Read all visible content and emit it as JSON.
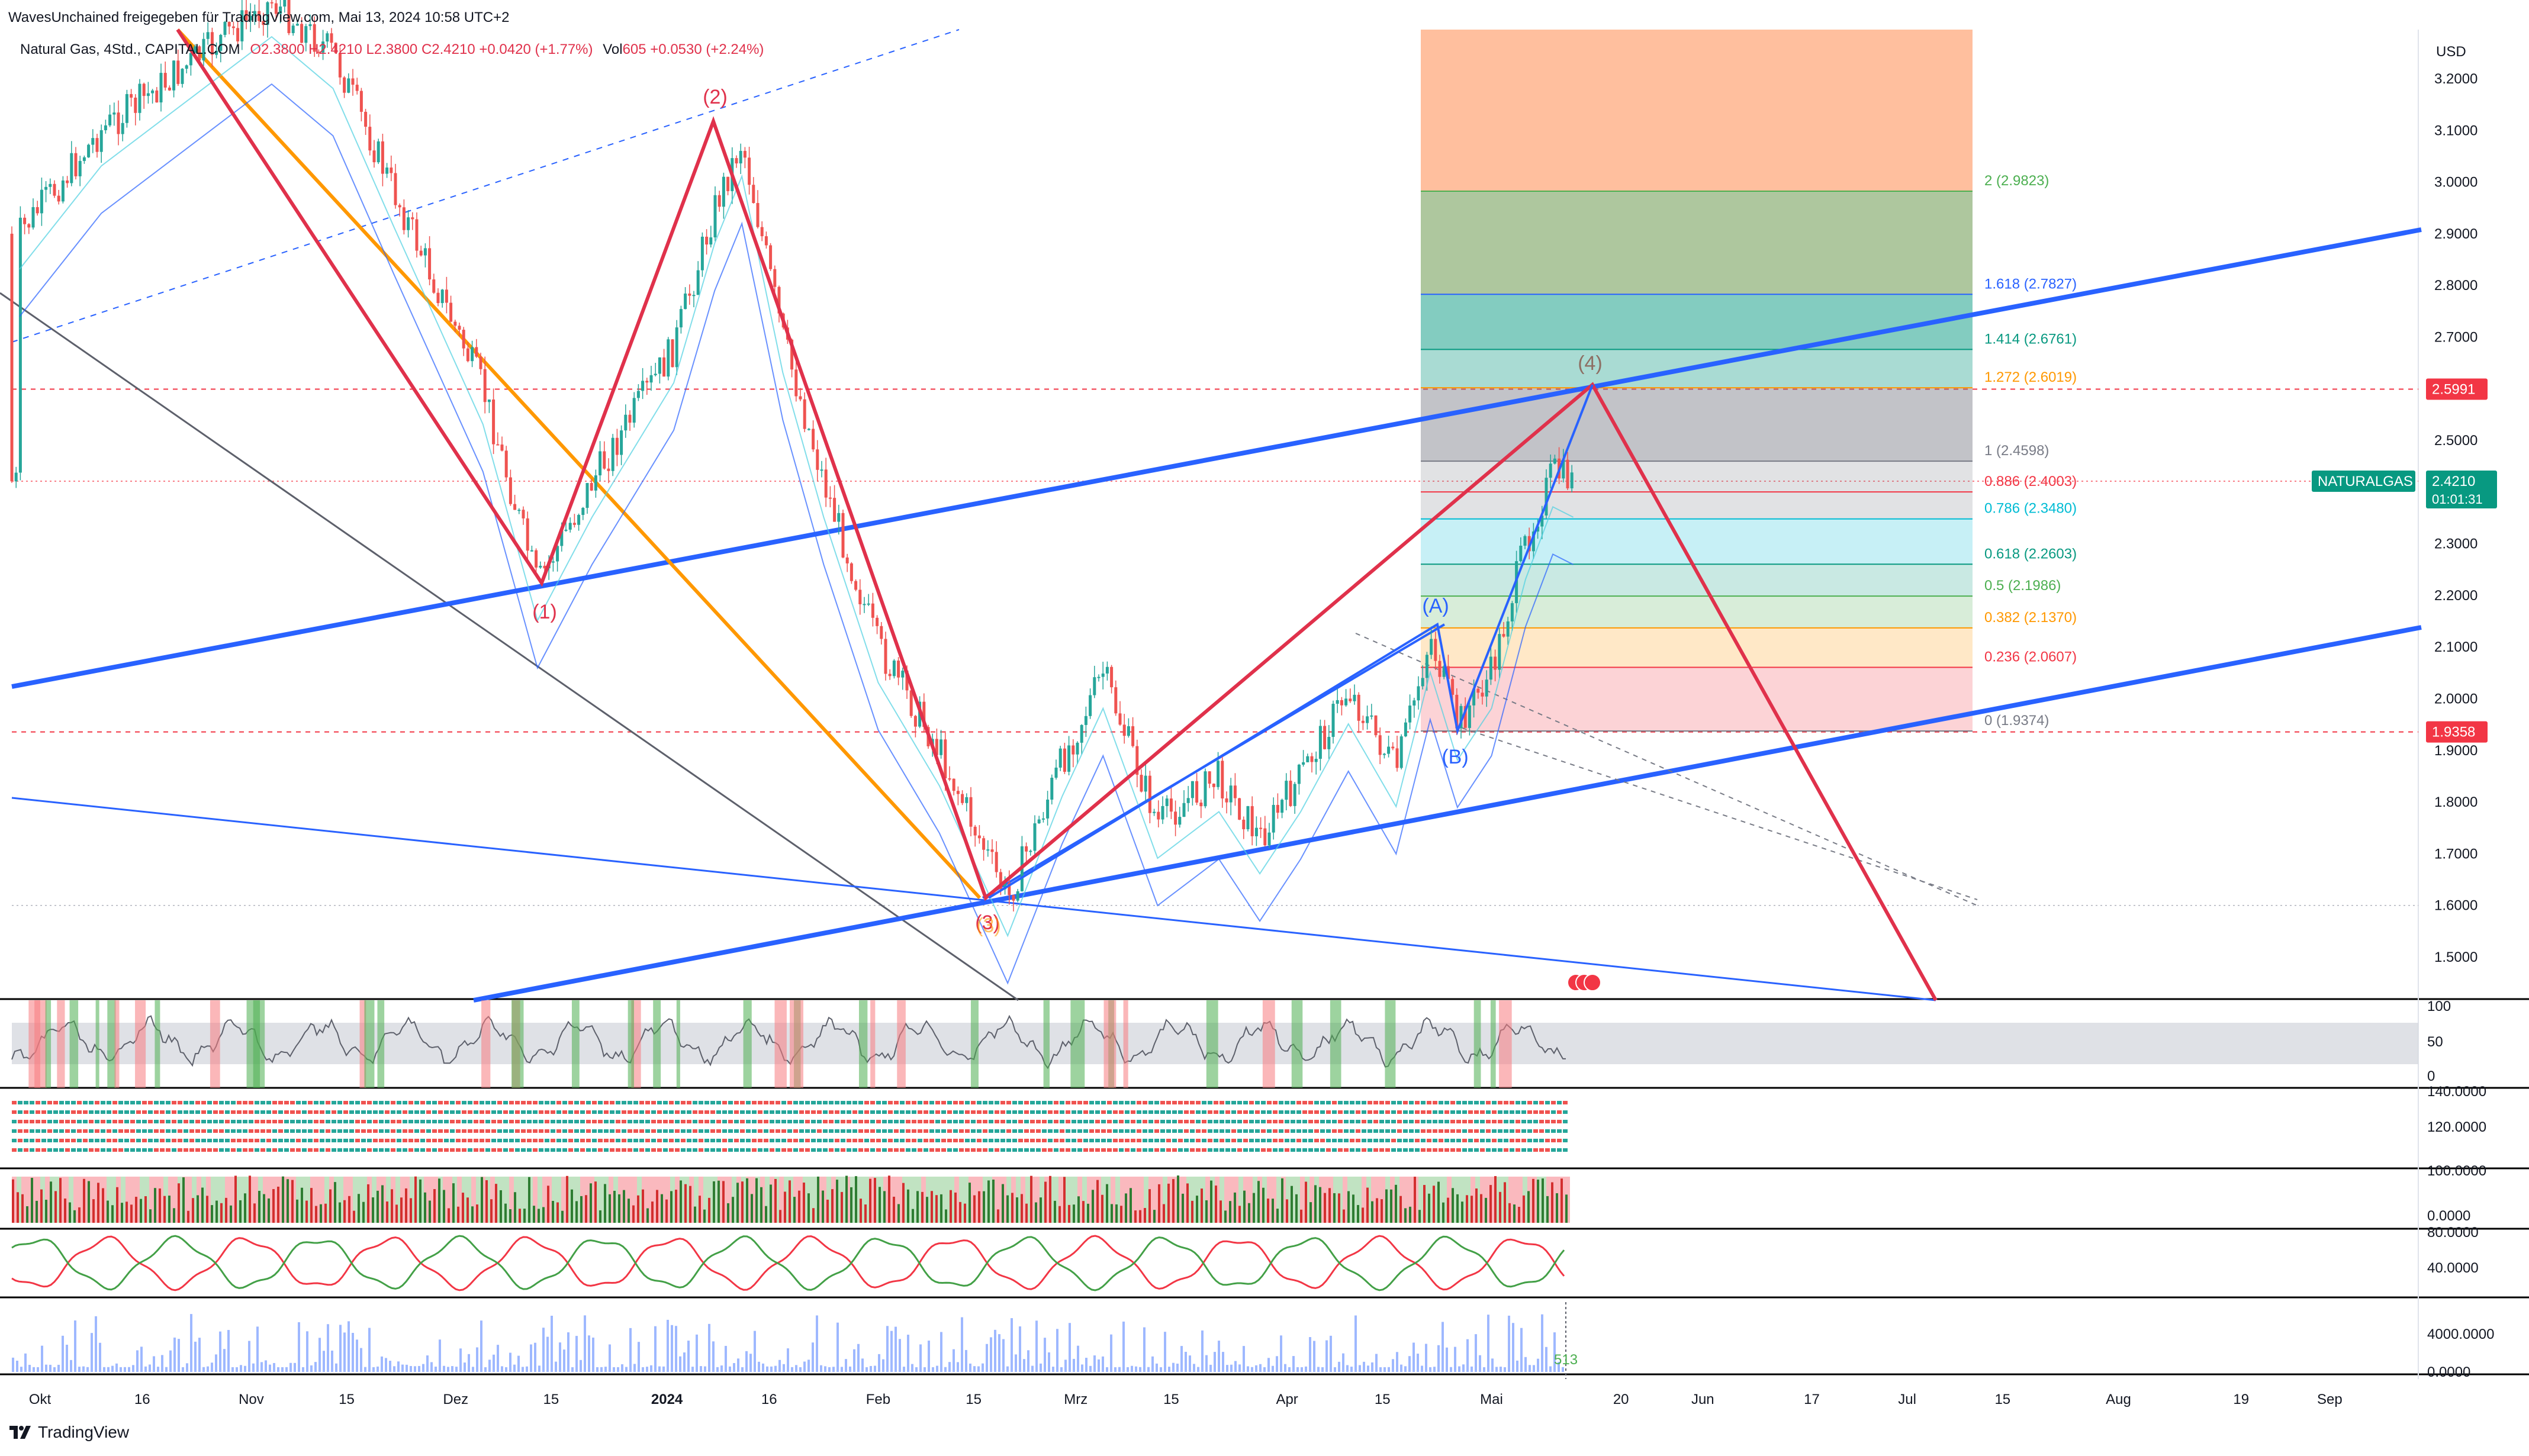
{
  "header": {
    "publisher": "WavesUnchained freigegeben für TradingView.com, Mai 13, 2024 10:58 UTC+2",
    "symbol": "Natural Gas, 4Std., CAPITAL.COM",
    "ohlc": {
      "open": "O2.3800",
      "high": "H2.4210",
      "low": "L2.3800",
      "close": "C2.4210",
      "change": "+0.0420 (+1.77%)"
    },
    "volume": {
      "label": "Vol",
      "value": "605",
      "change": "+0.0530 (+2.24%)"
    }
  },
  "currency": "USD",
  "price_badges": {
    "symbol_tag": "NATURALGAS",
    "last": "2.4210",
    "countdown": "01:01:31",
    "upper_line": "2.5991",
    "lower_line": "1.9358"
  },
  "footer": {
    "brand": "TradingView",
    "volume_last": "513"
  },
  "colors": {
    "up": "#26a69a",
    "down": "#ef5350",
    "wave_red": "#e0314b",
    "trend_blue": "#2962ff",
    "fib_orange": "#ff9800",
    "grey": "#787b86"
  },
  "chart_data": {
    "type": "line",
    "title": "",
    "xlabel": "",
    "ylabel": "",
    "ylim": [
      1.42,
      3.25
    ],
    "y_ticks": [
      "3.2000",
      "3.1000",
      "3.0000",
      "2.9000",
      "2.8000",
      "2.7000",
      "2.6000",
      "2.5000",
      "2.4000",
      "2.3000",
      "2.2000",
      "2.1000",
      "2.0000",
      "1.9000",
      "1.8000",
      "1.7000",
      "1.6000",
      "1.5000"
    ],
    "x_ticks": [
      "Okt",
      "16",
      "Nov",
      "15",
      "Dez",
      "15",
      "2024",
      "16",
      "Feb",
      "15",
      "Mrz",
      "15",
      "Apr",
      "15",
      "Mai",
      "20",
      "Jun",
      "17",
      "Jul",
      "15",
      "Aug",
      "19",
      "Sep"
    ],
    "x_tick_dates": [
      "2023-10-01",
      "2023-10-16",
      "2023-11-01",
      "2023-11-15",
      "2023-12-01",
      "2023-12-15",
      "2024-01-01",
      "2024-01-16",
      "2024-02-01",
      "2024-02-15",
      "2024-03-01",
      "2024-03-15",
      "2024-04-01",
      "2024-04-15",
      "2024-05-01",
      "2024-05-20",
      "2024-06-01",
      "2024-06-17",
      "2024-07-01",
      "2024-07-15",
      "2024-08-01",
      "2024-08-19",
      "2024-09-01"
    ],
    "series": [
      {
        "values_dates": [
          "2023-09-28",
          "2023-10-10",
          "2023-10-28",
          "2023-11-04",
          "2023-11-13",
          "2023-11-22",
          "2023-12-05",
          "2023-12-13",
          "2023-12-21",
          "2024-01-02",
          "2024-01-08",
          "2024-01-12",
          "2024-01-18",
          "2024-01-24",
          "2024-02-01",
          "2024-02-10",
          "2024-02-20",
          "2024-02-28",
          "2024-03-05",
          "2024-03-13",
          "2024-03-22",
          "2024-03-28",
          "2024-04-03",
          "2024-04-10",
          "2024-04-17",
          "2024-04-22",
          "2024-04-26",
          "2024-05-01",
          "2024-05-06",
          "2024-05-10",
          "2024-05-13"
        ],
        "values": [
          2.9,
          3.1,
          3.28,
          3.35,
          3.25,
          2.98,
          2.6,
          2.22,
          2.42,
          2.68,
          2.95,
          3.08,
          2.7,
          2.42,
          2.1,
          1.9,
          1.61,
          1.88,
          2.05,
          1.76,
          1.85,
          1.73,
          1.85,
          2.02,
          1.86,
          2.12,
          1.95,
          2.05,
          2.3,
          2.44,
          2.42
        ]
      }
    ],
    "fibonacci": {
      "levels": [
        {
          "label": "0 (1.9374)",
          "value": 1.9374
        },
        {
          "label": "0.236 (2.0607)",
          "value": 2.0607
        },
        {
          "label": "0.382 (2.1370)",
          "value": 2.137
        },
        {
          "label": "0.5 (2.1986)",
          "value": 2.1986
        },
        {
          "label": "0.618 (2.2603)",
          "value": 2.2603
        },
        {
          "label": "0.786 (2.3480)",
          "value": 2.348
        },
        {
          "label": "0.886 (2.4003)",
          "value": 2.4003
        },
        {
          "label": "1 (2.4598)",
          "value": 2.4598
        },
        {
          "label": "1.272 (2.6019)",
          "value": 2.6019
        },
        {
          "label": "1.414 (2.6761)",
          "value": 2.6761
        },
        {
          "label": "1.618 (2.7827)",
          "value": 2.7827
        },
        {
          "label": "2 (2.9823)",
          "value": 2.9823
        }
      ],
      "x_range": [
        "2024-04-24",
        "2024-07-14"
      ]
    },
    "waves": [
      {
        "label": "(1)",
        "date": "2023-12-13",
        "value": 2.22
      },
      {
        "label": "(2)",
        "date": "2024-01-12",
        "value": 3.12
      },
      {
        "label": "(3)",
        "date": "2024-02-20",
        "value": 1.61
      },
      {
        "label": "(A)",
        "date": "2024-04-26",
        "value": 2.14
      },
      {
        "label": "(B)",
        "date": "2024-04-30",
        "value": 1.93
      },
      {
        "label": "(4)",
        "date": "2024-05-19",
        "value": 2.6
      }
    ],
    "forecast_end": {
      "date": "2024-07-09",
      "value": 1.43
    },
    "oscillator_axis": [
      "100",
      "50",
      "0"
    ],
    "panel2_axis": [
      "140.0000",
      "120.0000"
    ],
    "panel3_axis": [
      "100.0000",
      "0.0000"
    ],
    "panel4_axis": [
      "80.0000",
      "40.0000"
    ],
    "volume_axis": [
      "4000.0000",
      "0.0000"
    ]
  }
}
